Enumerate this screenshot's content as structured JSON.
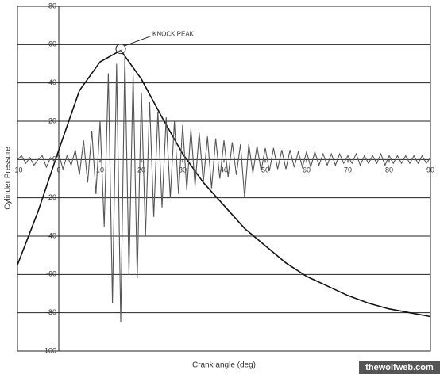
{
  "chart_data": {
    "type": "line",
    "y_label": "Cylinder Pressure",
    "x_label": "Crank angle (deg)",
    "annotation": "KNOCK PEAK",
    "xlim": [
      -10,
      90
    ],
    "xticks": [
      -10,
      0,
      10,
      20,
      30,
      40,
      50,
      60,
      70,
      80,
      90
    ],
    "ylim": [
      -100,
      80
    ],
    "yticks": [
      -100,
      -80,
      -60,
      -40,
      -20,
      0,
      20,
      40,
      60,
      80
    ],
    "grid": true,
    "series": [
      {
        "color": "#111111",
        "x": [
          -10,
          -5,
          0,
          5,
          10,
          15,
          20,
          25,
          30,
          35,
          40,
          45,
          50,
          55,
          60,
          65,
          70,
          75,
          80,
          85,
          90
        ],
        "values": [
          -55,
          -27,
          5,
          36,
          51,
          57,
          42,
          22,
          3,
          -12,
          -24,
          -36,
          -45,
          -54,
          -61,
          -66,
          -71,
          -75,
          -78,
          -80,
          -82
        ]
      },
      {
        "color": "#555555",
        "x": [
          -10,
          -9,
          -8,
          -7,
          -6,
          -5,
          -4,
          -3,
          -2,
          -1,
          0,
          1,
          2,
          3,
          4,
          5,
          6,
          7,
          8,
          9,
          10,
          11,
          12,
          13,
          14,
          15,
          16,
          17,
          18,
          19,
          20,
          21,
          22,
          23,
          24,
          25,
          26,
          27,
          28,
          29,
          30,
          31,
          32,
          33,
          34,
          35,
          36,
          37,
          38,
          39,
          40,
          41,
          42,
          43,
          44,
          45,
          46,
          47,
          48,
          49,
          50,
          51,
          52,
          53,
          54,
          55,
          56,
          57,
          58,
          59,
          60,
          61,
          62,
          63,
          64,
          65,
          66,
          67,
          68,
          69,
          70,
          71,
          72,
          73,
          74,
          75,
          76,
          77,
          78,
          79,
          80,
          81,
          82,
          83,
          84,
          85,
          86,
          87,
          88,
          89,
          90
        ],
        "values": [
          0,
          2,
          -2,
          1,
          -3,
          0,
          2,
          -4,
          1,
          -1,
          3,
          -5,
          2,
          -3,
          5,
          -8,
          10,
          -12,
          15,
          -18,
          20,
          -35,
          45,
          -75,
          50,
          -85,
          55,
          -60,
          45,
          -62,
          35,
          -40,
          30,
          -30,
          25,
          -25,
          22,
          -20,
          20,
          -18,
          18,
          -16,
          16,
          -14,
          14,
          -12,
          12,
          -15,
          11,
          -10,
          10,
          -9,
          9,
          -8,
          8,
          -20,
          8,
          -7,
          7,
          -6,
          6,
          -6,
          6,
          -5,
          5,
          -5,
          5,
          -4,
          4,
          -4,
          4,
          -4,
          4,
          -3,
          3,
          -3,
          3,
          -3,
          3,
          -2,
          2,
          -2,
          3,
          -3,
          2,
          -2,
          2,
          -2,
          3,
          -3,
          2,
          -2,
          2,
          -2,
          2,
          -2,
          2,
          -2,
          2,
          -2,
          1
        ]
      }
    ]
  },
  "watermark": "thewolfweb.com"
}
